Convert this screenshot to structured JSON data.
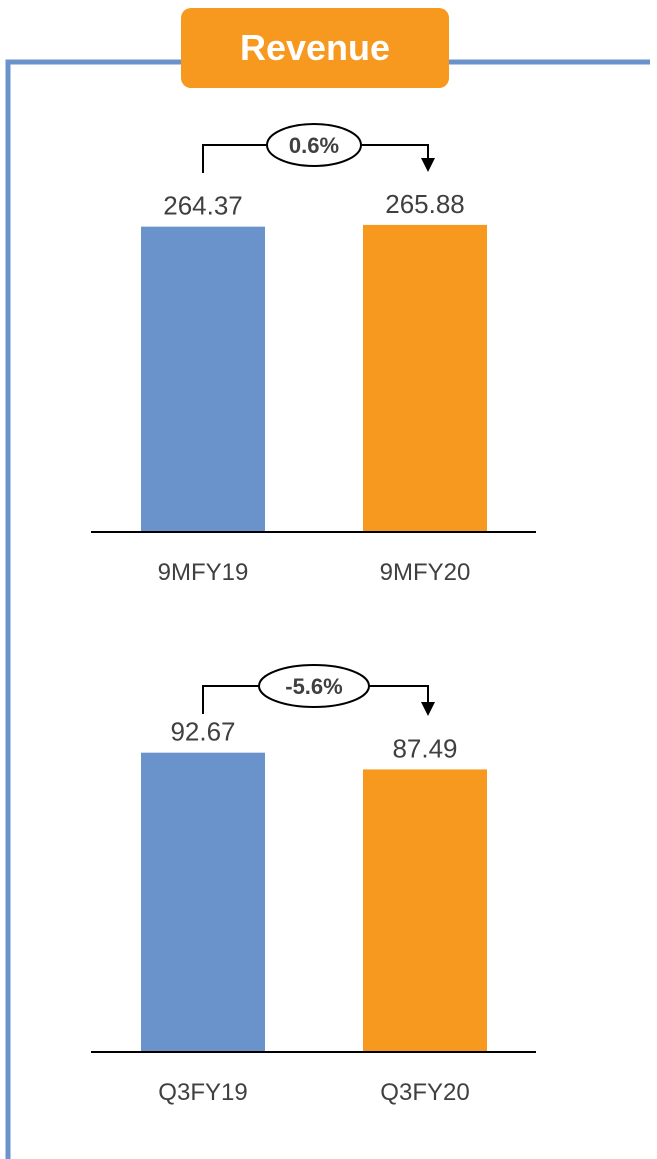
{
  "title": "Revenue",
  "colors": {
    "frame": "#6a93cb",
    "title_badge": "#f7981f",
    "previous_period": "#6a93cb",
    "current_period": "#f7981f",
    "axis": "#000000",
    "label_text": "#404040"
  },
  "chart_data": [
    {
      "type": "bar",
      "categories": [
        "9MFY19",
        "9MFY20"
      ],
      "values": [
        264.37,
        265.88
      ],
      "value_labels": [
        "264.37",
        "265.88"
      ],
      "growth_label": "0.6%",
      "bar_colors": [
        "#6a93cb",
        "#f7981f"
      ]
    },
    {
      "type": "bar",
      "categories": [
        "Q3FY19",
        "Q3FY20"
      ],
      "values": [
        92.67,
        87.49
      ],
      "value_labels": [
        "92.67",
        "87.49"
      ],
      "growth_label": "-5.6%",
      "bar_colors": [
        "#6a93cb",
        "#f7981f"
      ]
    }
  ]
}
